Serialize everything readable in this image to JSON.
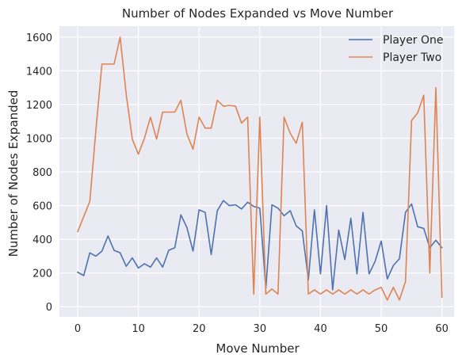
{
  "chart_data": {
    "type": "line",
    "title": "Number of Nodes Expanded vs Move Number",
    "xlabel": "Move Number",
    "ylabel": "Number of Nodes Expanded",
    "xlim": [
      -3,
      62
    ],
    "ylim": [
      -60,
      1665
    ],
    "xticks": [
      0,
      10,
      20,
      30,
      40,
      50,
      60
    ],
    "yticks": [
      0,
      200,
      400,
      600,
      800,
      1000,
      1200,
      1400,
      1600
    ],
    "grid": true,
    "legend_position": "top-right",
    "series": [
      {
        "name": "Player One",
        "color": "#4c72b0",
        "x": [
          0,
          1,
          2,
          3,
          4,
          5,
          6,
          7,
          8,
          9,
          10,
          11,
          12,
          13,
          14,
          15,
          16,
          17,
          18,
          19,
          20,
          21,
          22,
          23,
          24,
          25,
          26,
          27,
          28,
          29,
          30,
          31,
          32,
          33,
          34,
          35,
          36,
          37,
          38,
          39,
          40,
          41,
          42,
          43,
          44,
          45,
          46,
          47,
          48,
          49,
          50,
          51,
          52,
          53,
          54,
          55,
          56,
          57,
          58,
          59,
          60
        ],
        "values": [
          205,
          185,
          320,
          300,
          330,
          420,
          335,
          320,
          240,
          290,
          230,
          255,
          235,
          290,
          235,
          335,
          350,
          545,
          470,
          330,
          575,
          560,
          310,
          570,
          630,
          600,
          605,
          580,
          620,
          595,
          585,
          110,
          605,
          585,
          540,
          570,
          480,
          450,
          160,
          575,
          195,
          600,
          100,
          455,
          280,
          525,
          195,
          560,
          195,
          270,
          390,
          165,
          245,
          285,
          560,
          610,
          475,
          465,
          350,
          395,
          350
        ]
      },
      {
        "name": "Player Two",
        "color": "#dd8452",
        "x": [
          0,
          1,
          2,
          3,
          4,
          5,
          6,
          7,
          8,
          9,
          10,
          11,
          12,
          13,
          14,
          15,
          16,
          17,
          18,
          19,
          20,
          21,
          22,
          23,
          24,
          25,
          26,
          27,
          28,
          29,
          30,
          31,
          32,
          33,
          34,
          35,
          36,
          37,
          38,
          39,
          40,
          41,
          42,
          43,
          44,
          45,
          46,
          47,
          48,
          49,
          50,
          51,
          52,
          53,
          54,
          55,
          56,
          57,
          58,
          59,
          60
        ],
        "values": [
          445,
          535,
          625,
          1045,
          1440,
          1440,
          1440,
          1600,
          1260,
          995,
          905,
          1000,
          1125,
          995,
          1155,
          1155,
          1155,
          1225,
          1025,
          935,
          1125,
          1060,
          1060,
          1225,
          1190,
          1195,
          1190,
          1090,
          1125,
          75,
          1125,
          75,
          105,
          75,
          1125,
          1030,
          970,
          1095,
          75,
          100,
          75,
          100,
          75,
          100,
          75,
          100,
          75,
          100,
          75,
          100,
          115,
          40,
          115,
          40,
          150,
          1105,
          1150,
          1255,
          200,
          1300,
          55
        ]
      }
    ]
  }
}
